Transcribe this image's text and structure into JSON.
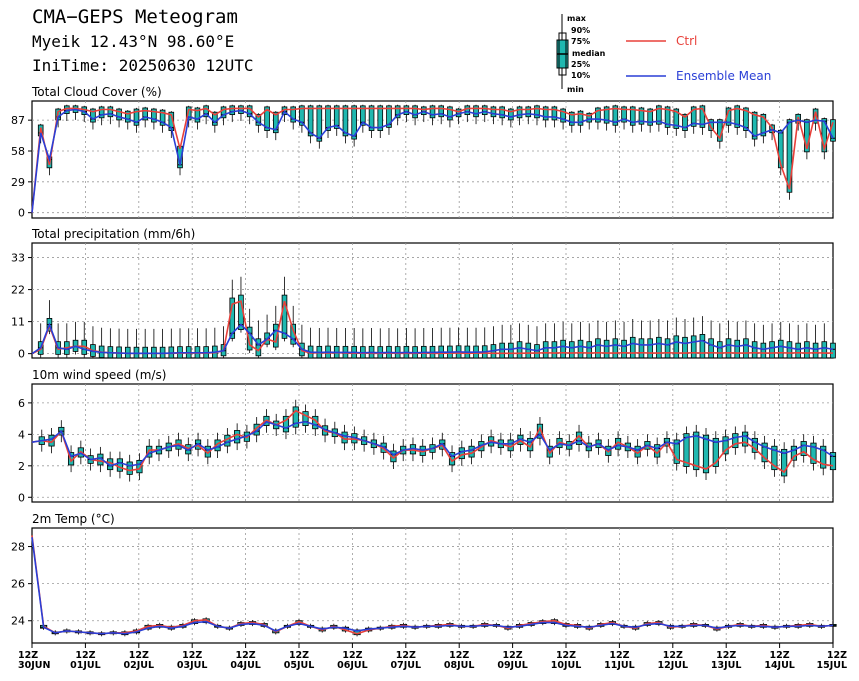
{
  "header": {
    "title": "CMA−GEPS Meteogram",
    "location": "Myeik 12.43°N 98.60°E",
    "init_time": "IniTime: 20250630 12UTC"
  },
  "legend": {
    "box_labels": [
      "max",
      "90%",
      "75%",
      "median",
      "25%",
      "10%",
      "min"
    ],
    "ctrl_label": "Ctrl",
    "mean_label": "Ensemble Mean",
    "ctrl_color": "#e8403a",
    "mean_color": "#2a3fd6",
    "box_color": "#1fb8b0"
  },
  "x_axis": {
    "ticks": [
      {
        "hour": "12Z",
        "date": "30JUN"
      },
      {
        "hour": "12Z",
        "date": "01JUL"
      },
      {
        "hour": "12Z",
        "date": "02JUL"
      },
      {
        "hour": "12Z",
        "date": "03JUL"
      },
      {
        "hour": "12Z",
        "date": "04JUL"
      },
      {
        "hour": "12Z",
        "date": "05JUL"
      },
      {
        "hour": "12Z",
        "date": "06JUL"
      },
      {
        "hour": "12Z",
        "date": "07JUL"
      },
      {
        "hour": "12Z",
        "date": "08JUL"
      },
      {
        "hour": "12Z",
        "date": "09JUL"
      },
      {
        "hour": "12Z",
        "date": "10JUL"
      },
      {
        "hour": "12Z",
        "date": "11JUL"
      },
      {
        "hour": "12Z",
        "date": "12JUL"
      },
      {
        "hour": "12Z",
        "date": "13JUL"
      },
      {
        "hour": "12Z",
        "date": "14JUL"
      },
      {
        "hour": "12Z",
        "date": "15JUL"
      }
    ]
  },
  "chart_data": [
    {
      "id": "cloud",
      "type": "box-line",
      "title": "Total Cloud Cover (%)",
      "ylim": [
        -5,
        105
      ],
      "yticks": [
        0,
        29,
        58,
        87
      ],
      "ctrl": [
        0,
        80,
        45,
        95,
        98,
        98,
        97,
        95,
        97,
        97,
        95,
        93,
        95,
        96,
        95,
        94,
        92,
        60,
        97,
        96,
        98,
        92,
        97,
        98,
        98,
        98,
        90,
        97,
        92,
        97,
        97,
        98,
        98,
        98,
        98,
        98,
        98,
        98,
        98,
        98,
        98,
        98,
        98,
        98,
        98,
        97,
        98,
        98,
        97,
        95,
        98,
        98,
        98,
        97,
        97,
        95,
        97,
        97,
        98,
        97,
        97,
        95,
        92,
        93,
        91,
        96,
        97,
        98,
        97,
        97,
        96,
        95,
        98,
        97,
        95,
        90,
        97,
        98,
        80,
        70,
        96,
        98,
        96,
        92,
        90,
        80,
        45,
        22,
        90,
        60,
        95,
        60,
        85
      ],
      "mean": [
        0,
        75,
        50,
        90,
        96,
        97,
        95,
        88,
        92,
        93,
        90,
        88,
        85,
        90,
        88,
        85,
        80,
        45,
        90,
        88,
        93,
        85,
        92,
        95,
        96,
        93,
        85,
        80,
        78,
        95,
        88,
        85,
        75,
        70,
        80,
        82,
        75,
        72,
        85,
        80,
        80,
        83,
        92,
        95,
        92,
        95,
        92,
        93,
        90,
        93,
        95,
        93,
        95,
        93,
        92,
        90,
        92,
        93,
        92,
        90,
        90,
        88,
        85,
        85,
        88,
        88,
        87,
        85,
        88,
        85,
        86,
        85,
        86,
        83,
        82,
        80,
        84,
        83,
        85,
        85,
        85,
        83,
        80,
        72,
        75,
        78,
        75,
        85,
        87,
        85,
        87,
        86,
        70
      ],
      "box": {
        "mx": 98,
        "q90": 97,
        "q75": 95,
        "med": 88,
        "q25": 80,
        "q10": 70,
        "mn": 60
      }
    },
    {
      "id": "precip",
      "type": "box-line",
      "title": "Total precipitation (mm/6h)",
      "ylim": [
        -1.5,
        38
      ],
      "yticks": [
        0,
        11,
        22,
        33
      ],
      "ctrl": [
        0,
        1.5,
        9.5,
        1.5,
        2,
        2.5,
        2.5,
        1,
        0.5,
        0.3,
        0.2,
        0.1,
        0.1,
        0.1,
        0.1,
        0.1,
        0.1,
        0.2,
        0.2,
        0.2,
        0.2,
        0.3,
        1,
        17,
        18,
        3,
        1,
        5,
        4,
        18,
        8,
        1,
        0.2,
        0.3,
        0.2,
        0.3,
        0.2,
        0.1,
        0.2,
        0.1,
        0.1,
        0.2,
        0.1,
        0.1,
        0.1,
        0.2,
        0.1,
        0.1,
        0.2,
        0.2,
        0.1,
        0.2,
        0.2,
        0.1,
        0.1,
        0.1,
        0.1,
        0.2,
        0.2,
        0.3,
        0.2,
        0.3,
        0.2,
        0.3,
        0.2,
        0.3,
        0.2,
        0.2,
        0.3,
        0.2,
        0.3,
        0.2,
        0.2,
        0.3,
        0.2,
        0.2,
        0.3,
        0.2,
        0.3,
        0.2,
        0.3,
        0.2,
        0.2,
        0.3,
        0.2,
        0.2,
        0.3,
        0.2,
        0.3,
        0.2,
        0.3,
        0.2,
        0.2
      ],
      "mean": [
        0,
        2,
        10,
        2,
        1.5,
        2.5,
        1.5,
        0.8,
        0.4,
        0.3,
        0.2,
        0.1,
        0.1,
        0.1,
        0.1,
        0.1,
        0.2,
        0.3,
        0.3,
        0.3,
        0.3,
        0.5,
        1,
        7,
        10,
        7,
        3,
        5,
        8,
        7,
        5,
        1.5,
        0.5,
        0.4,
        0.5,
        0.4,
        0.4,
        0.4,
        0.3,
        0.4,
        0.3,
        0.4,
        0.3,
        0.4,
        0.3,
        0.4,
        0.4,
        0.5,
        0.5,
        0.6,
        0.5,
        0.5,
        0.6,
        1,
        1.5,
        1.5,
        2,
        1.5,
        1,
        2,
        2,
        2.5,
        2,
        2.5,
        2,
        3,
        2.5,
        3,
        2.5,
        3.5,
        3,
        3,
        3.5,
        3,
        4,
        3.5,
        4,
        4.5,
        3,
        2,
        3,
        2.5,
        3,
        2,
        1.5,
        2,
        2.5,
        2,
        1.5,
        2,
        1.5,
        2,
        1.5
      ],
      "box": {
        "mx": 32,
        "q90": 20,
        "q75": 14,
        "med": 8,
        "q25": 3,
        "q10": 1,
        "mn": 0
      }
    },
    {
      "id": "wind",
      "type": "box-line",
      "title": "10m wind speed (m/s)",
      "ylim": [
        -0.3,
        7.2
      ],
      "yticks": [
        0,
        2,
        4,
        6
      ],
      "ctrl": [
        3.5,
        3.6,
        3.5,
        4.2,
        2.3,
        2.9,
        2.4,
        2.3,
        2.2,
        1.9,
        1.7,
        1.8,
        3,
        3,
        3.2,
        3.4,
        3.1,
        3.3,
        2.8,
        3.4,
        3.7,
        4,
        3.8,
        4.4,
        4.9,
        4.6,
        4.9,
        5.5,
        5.2,
        4.9,
        4.2,
        4.1,
        3.7,
        3.7,
        3.6,
        3.4,
        3.1,
        2.5,
        3,
        3,
        2.9,
        3.1,
        3.3,
        2.3,
        2.7,
        2.8,
        3.2,
        3.6,
        3.4,
        3.2,
        3.6,
        3.2,
        4.4,
        2.8,
        3.5,
        3.3,
        3.9,
        3.2,
        3.4,
        2.9,
        3.5,
        3.2,
        2.8,
        3.3,
        2.8,
        3.5,
        2.4,
        2.2,
        2,
        1.8,
        2.2,
        3,
        3.4,
        3.5,
        3.1,
        2.5,
        2,
        1.6,
        2.6,
        2.9,
        2.4,
        2.1,
        2
      ],
      "mean": [
        3.5,
        3.6,
        3.7,
        4.2,
        2.6,
        2.8,
        2.4,
        2.5,
        2,
        2.2,
        2,
        2.1,
        2.8,
        3,
        3.2,
        3.3,
        3,
        3.4,
        3,
        3.2,
        3.5,
        3.7,
        3.9,
        4.2,
        4.8,
        4.6,
        4.4,
        4.7,
        4.8,
        4.6,
        4.3,
        4.1,
        3.9,
        3.8,
        3.6,
        3.4,
        3.2,
        2.7,
        3,
        3.1,
        3,
        3.1,
        3.4,
        2.6,
        2.9,
        3,
        3.3,
        3.5,
        3.4,
        3.4,
        3.7,
        3.5,
        4,
        3,
        3.4,
        3.3,
        3.6,
        3.2,
        3.4,
        3,
        3.3,
        3.2,
        3,
        3.3,
        3.1,
        3.5,
        3.4,
        3.8,
        3.9,
        3.7,
        3.5,
        3.6,
        3.8,
        3.9,
        3.5,
        3.2,
        3,
        2.8,
        3,
        3.3,
        3.2,
        3,
        2.6
      ],
      "box": {
        "mx": 5.5,
        "q90": 4.8,
        "q75": 4.2,
        "med": 3.5,
        "q25": 2.8,
        "q10": 2.2,
        "mn": 1.5
      }
    },
    {
      "id": "temp",
      "type": "box-line",
      "title": "2m Temp (°C)",
      "ylim": [
        22.8,
        29
      ],
      "yticks": [
        24,
        26,
        28
      ],
      "ctrl": [
        28.6,
        23.7,
        23.35,
        23.45,
        23.4,
        23.35,
        23.3,
        23.35,
        23.35,
        23.45,
        23.7,
        23.75,
        23.65,
        23.75,
        24,
        24.05,
        23.7,
        23.6,
        23.85,
        23.9,
        23.8,
        23.4,
        23.7,
        23.95,
        23.7,
        23.5,
        23.7,
        23.5,
        23.3,
        23.5,
        23.6,
        23.7,
        23.75,
        23.65,
        23.7,
        23.75,
        23.8,
        23.7,
        23.7,
        23.8,
        23.75,
        23.6,
        23.75,
        23.85,
        23.95,
        24,
        23.8,
        23.75,
        23.6,
        23.8,
        23.9,
        23.7,
        23.6,
        23.85,
        23.9,
        23.65,
        23.7,
        23.8,
        23.75,
        23.55,
        23.7,
        23.8,
        23.7,
        23.75,
        23.65,
        23.7,
        23.75,
        23.8,
        23.7,
        23.75
      ],
      "mean": [
        28.5,
        23.65,
        23.35,
        23.45,
        23.4,
        23.35,
        23.3,
        23.35,
        23.3,
        23.4,
        23.6,
        23.7,
        23.6,
        23.7,
        23.9,
        23.95,
        23.7,
        23.6,
        23.8,
        23.85,
        23.75,
        23.45,
        23.7,
        23.85,
        23.7,
        23.55,
        23.65,
        23.6,
        23.45,
        23.55,
        23.6,
        23.65,
        23.7,
        23.65,
        23.7,
        23.7,
        23.75,
        23.7,
        23.7,
        23.75,
        23.75,
        23.65,
        23.7,
        23.8,
        23.9,
        23.9,
        23.75,
        23.7,
        23.65,
        23.75,
        23.85,
        23.7,
        23.65,
        23.8,
        23.85,
        23.7,
        23.7,
        23.75,
        23.75,
        23.6,
        23.7,
        23.75,
        23.7,
        23.7,
        23.65,
        23.7,
        23.7,
        23.75,
        23.7,
        23.75
      ],
      "box": {
        "mx": 24.1,
        "q90": 23.95,
        "q75": 23.85,
        "med": 23.7,
        "q25": 23.55,
        "q10": 23.45,
        "mn": 23.3
      }
    }
  ]
}
